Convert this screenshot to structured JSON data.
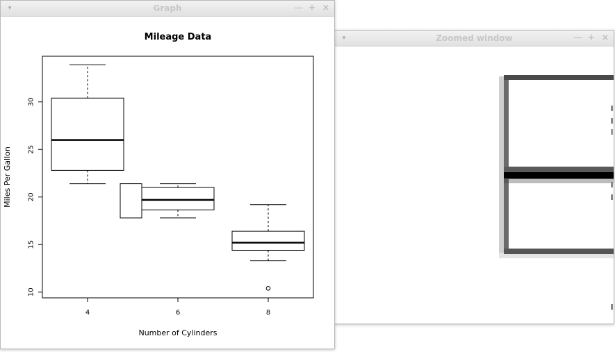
{
  "graph_window": {
    "title": "Graph",
    "controls": {
      "menu": "▾",
      "minimize": "—",
      "maximize": "+",
      "close": "×"
    }
  },
  "zoom_window": {
    "title": "Zoomed window",
    "controls": {
      "menu": "▾",
      "minimize": "—",
      "maximize": "+",
      "close": "×"
    }
  },
  "chart_data": {
    "type": "boxplot",
    "title": "Mileage Data",
    "xlabel": "Number of Cylinders",
    "ylabel": "Miles Per Gallon",
    "ylim": [
      9.4,
      34.8
    ],
    "yticks": [
      10,
      15,
      20,
      25,
      30
    ],
    "categories": [
      "4",
      "6",
      "8"
    ],
    "boxes": [
      {
        "category": "4",
        "whisker_low": 21.4,
        "q1": 22.8,
        "median": 26.0,
        "q3": 30.4,
        "whisker_high": 33.9,
        "outliers": []
      },
      {
        "category": "6",
        "whisker_low": 17.8,
        "q1": 18.65,
        "median": 19.7,
        "q3": 21.0,
        "whisker_high": 21.4,
        "outliers": []
      },
      {
        "category": "8",
        "whisker_low": 13.3,
        "q1": 14.4,
        "median": 15.2,
        "q3": 16.4,
        "whisker_high": 19.2,
        "outliers": [
          10.4
        ]
      }
    ],
    "grid": false,
    "legend": "none",
    "drag_box": {
      "y_low": 17.8,
      "y_high": 21.4
    }
  }
}
